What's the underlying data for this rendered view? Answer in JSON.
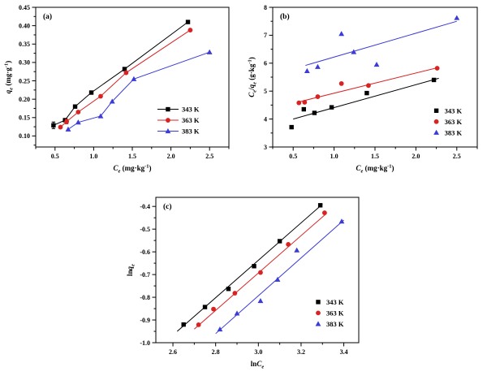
{
  "figure": {
    "background": "#ffffff",
    "series_colors": {
      "k343": "#000000",
      "k363": "#d92323",
      "k383": "#3b3bd6"
    },
    "legend_labels": [
      "343 K",
      "363 K",
      "383 K"
    ]
  },
  "chart_data": [
    {
      "type": "scatter",
      "panel_label": "(a)",
      "xlabel_segments": [
        {
          "t": "C",
          "i": true
        },
        {
          "t": "e",
          "sub": true,
          "i": true
        },
        {
          "t": " (mg·kg"
        },
        {
          "t": "-1",
          "sup": true
        },
        {
          "t": ")"
        }
      ],
      "ylabel_segments": [
        {
          "t": "q",
          "i": true
        },
        {
          "t": "e",
          "sub": true,
          "i": true
        },
        {
          "t": " (mg·g"
        },
        {
          "t": "-1",
          "sup": true
        },
        {
          "t": ")"
        }
      ],
      "xlim": [
        0.25,
        2.75
      ],
      "ylim": [
        0.07,
        0.45
      ],
      "xticks": {
        "values": [
          0.5,
          1.0,
          1.5,
          2.0,
          2.5
        ],
        "labels": [
          "0.5",
          "1.0",
          "1.5",
          "2.0",
          "2.5"
        ]
      },
      "yticks": {
        "values": [
          0.1,
          0.15,
          0.2,
          0.25,
          0.3,
          0.35,
          0.4,
          0.45
        ],
        "labels": [
          "0.10",
          "0.15",
          "0.20",
          "0.25",
          "0.30",
          "0.35",
          "0.40",
          "0.45"
        ]
      },
      "xminor": 0.25,
      "yminor": 0.025,
      "grid": false,
      "legend": {
        "style": "line",
        "fx": 0.63,
        "fy": 0.73
      },
      "series": [
        {
          "name": "343 K",
          "color": "#000000",
          "marker": "square",
          "connect": true,
          "x": [
            0.48,
            0.63,
            0.76,
            0.97,
            1.4,
            2.22
          ],
          "y": [
            0.129,
            0.143,
            0.18,
            0.218,
            0.282,
            0.41
          ],
          "yerr": [
            0.009,
            0,
            0,
            0,
            0,
            0
          ]
        },
        {
          "name": "363 K",
          "color": "#d92323",
          "marker": "circle",
          "connect": true,
          "x": [
            0.57,
            0.65,
            0.8,
            1.09,
            1.42,
            2.25
          ],
          "y": [
            0.124,
            0.139,
            0.165,
            0.208,
            0.272,
            0.388
          ],
          "yerr": [
            0,
            0.006,
            0,
            0,
            0,
            0
          ]
        },
        {
          "name": "383 K",
          "color": "#3b3bd6",
          "marker": "triangle",
          "connect": true,
          "x": [
            0.67,
            0.8,
            1.09,
            1.24,
            1.52,
            2.5
          ],
          "y": [
            0.118,
            0.137,
            0.154,
            0.194,
            0.255,
            0.328
          ],
          "yerr": [
            0,
            0,
            0,
            0,
            0,
            0
          ]
        }
      ]
    },
    {
      "type": "scatter",
      "panel_label": "(b)",
      "xlabel_segments": [
        {
          "t": "C",
          "i": true
        },
        {
          "t": "e",
          "sub": true,
          "i": true
        },
        {
          "t": " (mg·kg"
        },
        {
          "t": "-1",
          "sup": true
        },
        {
          "t": ")"
        }
      ],
      "ylabel_segments": [
        {
          "t": "C",
          "i": true
        },
        {
          "t": "e",
          "sub": true,
          "i": true
        },
        {
          "t": "/"
        },
        {
          "t": "q",
          "i": true
        },
        {
          "t": "e",
          "sub": true,
          "i": true
        },
        {
          "t": " (g·kg"
        },
        {
          "t": "-1",
          "sup": true
        },
        {
          "t": ")"
        }
      ],
      "xlim": [
        0.25,
        2.75
      ],
      "ylim": [
        3,
        8
      ],
      "xticks": {
        "values": [
          0.5,
          1.0,
          1.5,
          2.0,
          2.5
        ],
        "labels": [
          "0.5",
          "1.0",
          "1.5",
          "2.0",
          "2.5"
        ]
      },
      "yticks": {
        "values": [
          3,
          4,
          5,
          6,
          7,
          8
        ],
        "labels": [
          "3",
          "4",
          "5",
          "6",
          "7",
          "8"
        ]
      },
      "xminor": 0.25,
      "yminor": 0.5,
      "grid": false,
      "legend": {
        "style": "marker",
        "fx": 0.8,
        "fy": 0.74
      },
      "series": [
        {
          "name": "343 K",
          "color": "#000000",
          "marker": "square",
          "connect": false,
          "x": [
            0.48,
            0.63,
            0.76,
            0.97,
            1.4,
            2.22
          ],
          "y": [
            3.71,
            4.35,
            4.22,
            4.42,
            4.93,
            5.4
          ],
          "fit": [
            0.5,
            4.0,
            2.28,
            5.46
          ]
        },
        {
          "name": "363 K",
          "color": "#d92323",
          "marker": "circle",
          "connect": false,
          "x": [
            0.57,
            0.64,
            0.8,
            1.09,
            1.42,
            2.26
          ],
          "y": [
            4.58,
            4.6,
            4.8,
            5.27,
            5.2,
            5.82
          ],
          "fit": [
            0.55,
            4.6,
            2.28,
            5.85
          ]
        },
        {
          "name": "383 K",
          "color": "#3b3bd6",
          "marker": "triangle",
          "connect": false,
          "x": [
            0.67,
            0.8,
            1.09,
            1.24,
            1.52,
            2.5
          ],
          "y": [
            5.72,
            5.87,
            7.05,
            6.4,
            5.95,
            7.62
          ],
          "fit": [
            0.65,
            5.92,
            2.5,
            7.5
          ]
        }
      ]
    },
    {
      "type": "scatter",
      "panel_label": "(c)",
      "xlabel_segments": [
        {
          "t": "ln"
        },
        {
          "t": "C",
          "i": true
        },
        {
          "t": "e",
          "sub": true,
          "i": true
        }
      ],
      "ylabel_segments": [
        {
          "t": "ln"
        },
        {
          "t": "q",
          "i": true
        },
        {
          "t": "e",
          "sub": true,
          "i": true
        }
      ],
      "xlim": [
        2.52,
        3.47
      ],
      "ylim": [
        -1.0,
        -0.36
      ],
      "xticks": {
        "values": [
          2.6,
          2.8,
          3.0,
          3.2,
          3.4
        ],
        "labels": [
          "2.6",
          "2.8",
          "3.0",
          "3.2",
          "3.4"
        ]
      },
      "yticks": {
        "values": [
          -1.0,
          -0.9,
          -0.8,
          -0.7,
          -0.6,
          -0.5,
          -0.4
        ],
        "labels": [
          "-1.0",
          "-0.9",
          "-0.8",
          "-0.7",
          "-0.6",
          "-0.5",
          "-0.4"
        ]
      },
      "xminor": 0.1,
      "yminor": 0.05,
      "grid": false,
      "legend": {
        "style": "marker",
        "fx": 0.8,
        "fy": 0.72
      },
      "series": [
        {
          "name": "343 K",
          "color": "#000000",
          "marker": "square",
          "connect": false,
          "x": [
            2.65,
            2.75,
            2.86,
            2.98,
            3.1,
            3.29
          ],
          "y": [
            -0.92,
            -0.843,
            -0.763,
            -0.663,
            -0.553,
            -0.395
          ],
          "fit": [
            2.62,
            -0.95,
            3.3,
            -0.39
          ]
        },
        {
          "name": "363 K",
          "color": "#d92323",
          "marker": "circle",
          "connect": false,
          "x": [
            2.72,
            2.79,
            2.89,
            3.01,
            3.14,
            3.31
          ],
          "y": [
            -0.921,
            -0.852,
            -0.782,
            -0.691,
            -0.567,
            -0.428
          ],
          "fit": [
            2.7,
            -0.94,
            3.32,
            -0.43
          ]
        },
        {
          "name": "383 K",
          "color": "#3b3bd6",
          "marker": "triangle",
          "connect": false,
          "x": [
            2.82,
            2.9,
            3.01,
            3.09,
            3.18,
            3.39
          ],
          "y": [
            -0.941,
            -0.871,
            -0.816,
            -0.722,
            -0.593,
            -0.466
          ],
          "fit": [
            2.8,
            -0.96,
            3.4,
            -0.46
          ]
        }
      ]
    }
  ]
}
